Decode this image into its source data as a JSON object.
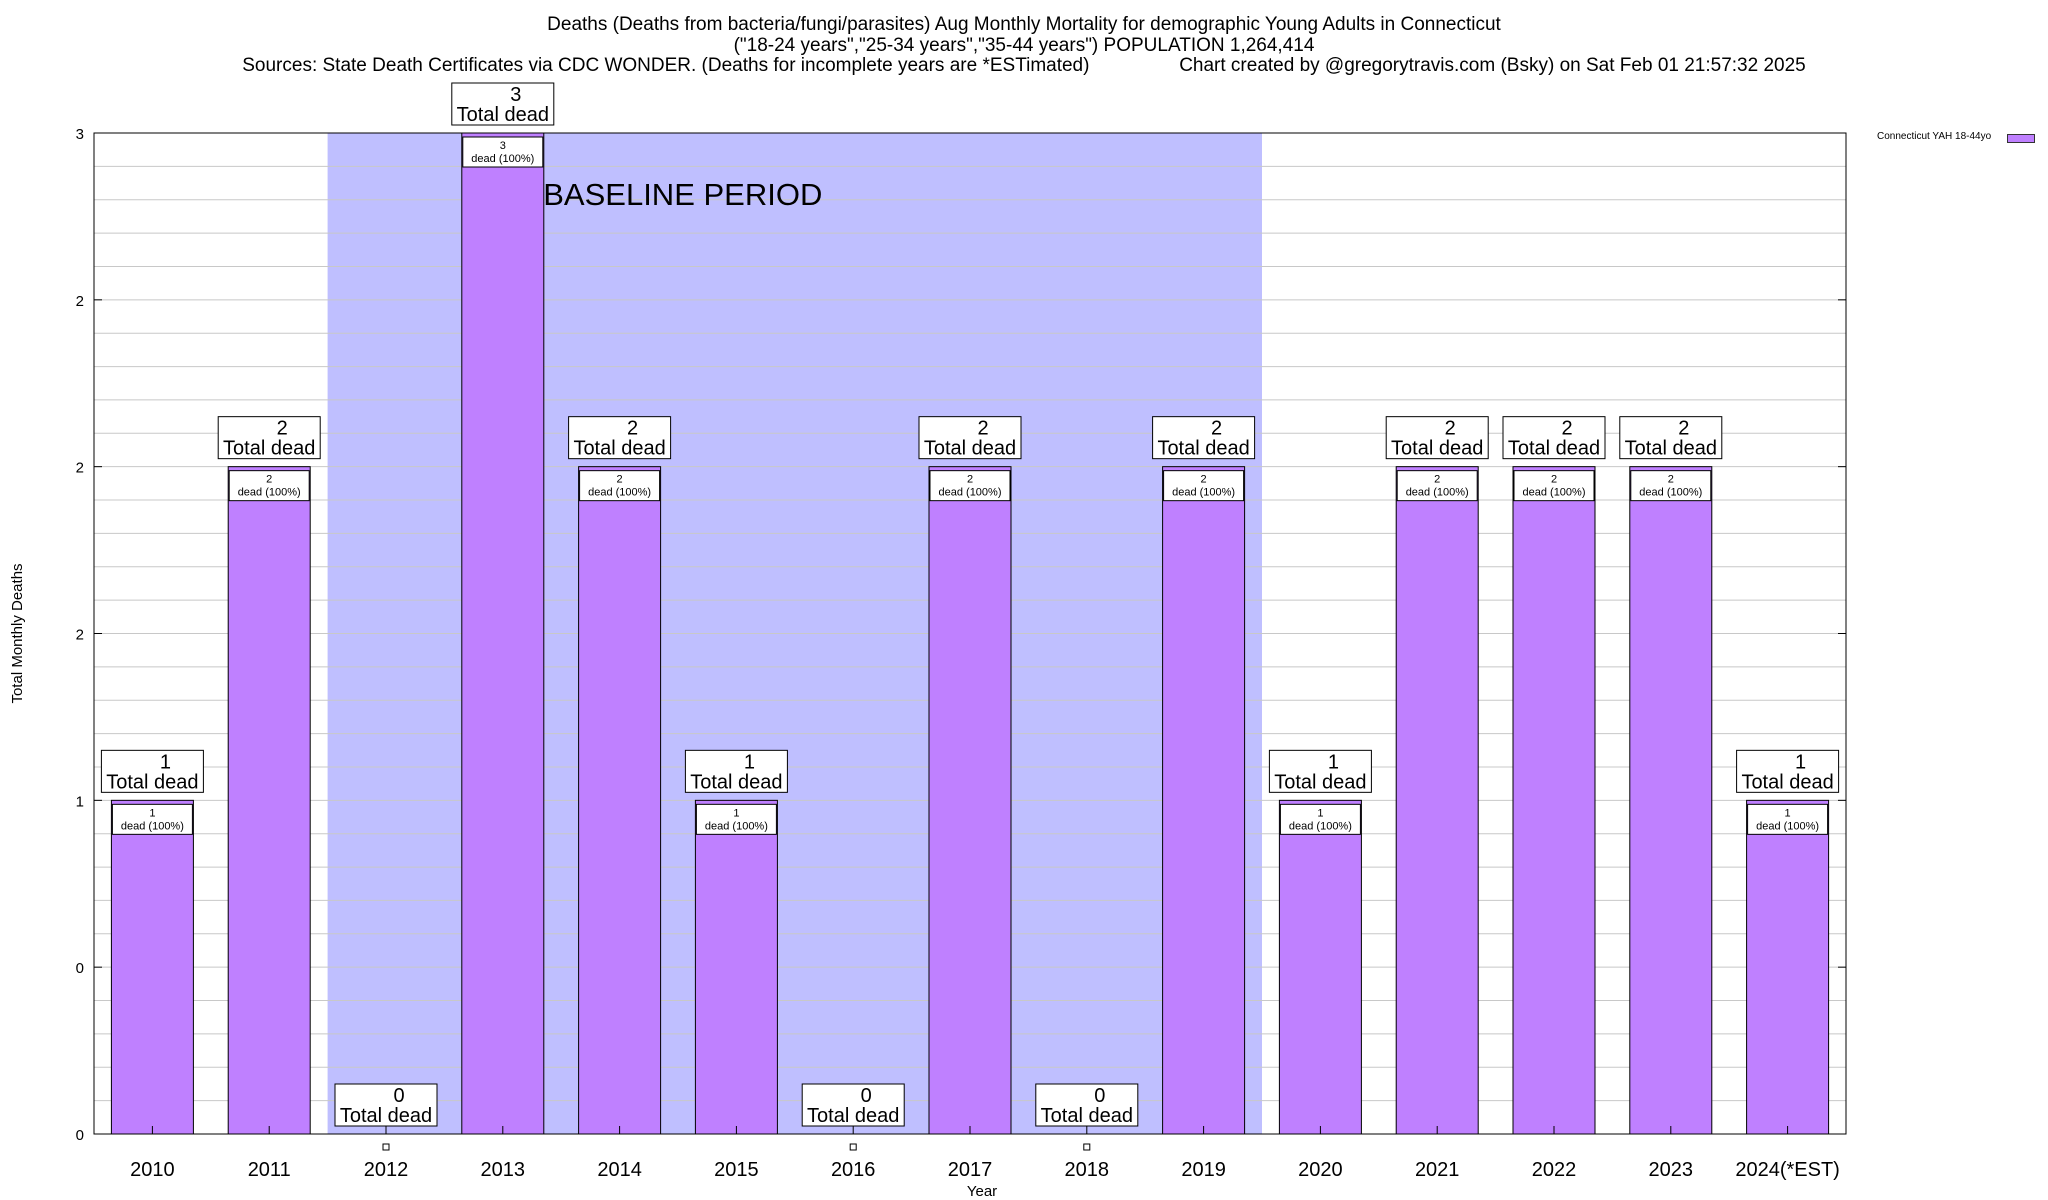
{
  "chart_data": {
    "type": "bar",
    "title_lines": [
      "Deaths (Deaths from bacteria/fungi/parasites) Aug Monthly Mortality for demographic Young Adults in Connecticut",
      "(\"18-24 years\",\"25-34 years\",\"35-44 years\") POPULATION 1,264,414",
      "Sources: State Death Certificates via CDC WONDER. (Deaths for incomplete years are *ESTimated)                 Chart created by @gregorytravis.com (Bsky) on Sat Feb 01 21:57:32 2025"
    ],
    "xlabel": "Year",
    "ylabel": "Total Monthly Deaths",
    "categories": [
      "2010",
      "2011",
      "2012",
      "2013",
      "2014",
      "2015",
      "2016",
      "2017",
      "2018",
      "2019",
      "2020",
      "2021",
      "2022",
      "2023",
      "2024(*EST)"
    ],
    "series": [
      {
        "name": "Connecticut YAH 18-44yo",
        "values": [
          1,
          2,
          0,
          3,
          2,
          1,
          0,
          2,
          0,
          2,
          1,
          2,
          2,
          2,
          1
        ]
      }
    ],
    "ylim": [
      0,
      3
    ],
    "yticks": [
      0,
      0.5,
      1,
      1.5,
      2,
      2.5,
      3
    ],
    "ytick_labels": [
      "0",
      "0",
      "1",
      "2",
      "2",
      "2",
      "3"
    ],
    "total_label_suffix": "Total dead",
    "segment_label_suffix": "dead (100%)",
    "baseline_period": {
      "from": "2012",
      "to": "2019",
      "label": "BASELINE PERIOD"
    },
    "grid": true,
    "legend_position": "top-right",
    "colors": {
      "bar": "#bf80ff",
      "baseline_band": "#bfbfff",
      "axis": "#000000",
      "grid": "#c8c8c8"
    }
  }
}
